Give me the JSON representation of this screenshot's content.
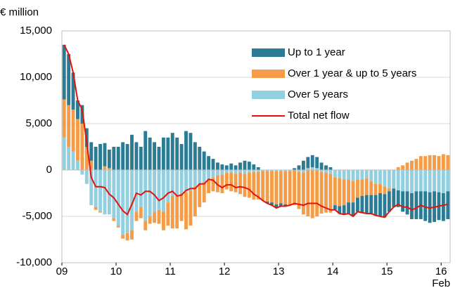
{
  "chart_data": {
    "type": "bar",
    "y_label": "€ million",
    "x_note": "Feb",
    "categories": [
      "09",
      null,
      null,
      null,
      null,
      null,
      null,
      null,
      null,
      null,
      null,
      null,
      "10",
      null,
      null,
      null,
      null,
      null,
      null,
      null,
      null,
      null,
      null,
      null,
      "11",
      null,
      null,
      null,
      null,
      null,
      null,
      null,
      null,
      null,
      null,
      null,
      "12",
      null,
      null,
      null,
      null,
      null,
      null,
      null,
      null,
      null,
      null,
      null,
      "13",
      null,
      null,
      null,
      null,
      null,
      null,
      null,
      null,
      null,
      null,
      null,
      "14",
      null,
      null,
      null,
      null,
      null,
      null,
      null,
      null,
      null,
      null,
      null,
      "15",
      null,
      null,
      null,
      null,
      null,
      null,
      null,
      null,
      null,
      null,
      null,
      "16",
      null
    ],
    "ylim": [
      -10000,
      15000
    ],
    "yticks": [
      {
        "value": -10000,
        "label": "-10,000"
      },
      {
        "value": -5000,
        "label": "-5,000"
      },
      0,
      {
        "value": 5000,
        "label": "5,000"
      },
      {
        "value": 10000,
        "label": "10,000"
      },
      {
        "value": 15000,
        "label": "15,000"
      }
    ],
    "grid": true,
    "legend": "upper right",
    "series": [
      {
        "name": "Over 5 years",
        "color": "#92cfe0",
        "values": [
          3500,
          2500,
          2000,
          1000,
          -500,
          -1500,
          -3800,
          -4000,
          -4500,
          -4800,
          -4800,
          -5200,
          -6000,
          -7000,
          -6800,
          -6500,
          -4500,
          -4000,
          -5500,
          -5000,
          -4500,
          -4300,
          -4500,
          -3500,
          -2800,
          -2800,
          -2500,
          -2400,
          -2200,
          -1800,
          -1500,
          -1300,
          -1000,
          -800,
          -600,
          -500,
          -300,
          -300,
          -400,
          -300,
          -400,
          -300,
          -200,
          -200,
          -100,
          -100,
          -100,
          -100,
          -100,
          -100,
          -100,
          0,
          -200,
          -300,
          200,
          300,
          200,
          -200,
          -300,
          -400,
          -800,
          -900,
          -1000,
          -1000,
          -1200,
          -1000,
          -1000,
          -900,
          -1200,
          -1500,
          -1500,
          -1800,
          -2000,
          -2000,
          -2200,
          -2300,
          -2300,
          -2500,
          -2300,
          -2300,
          -2300,
          -2400,
          -2300,
          -2400,
          -2500,
          -2300
        ]
      },
      {
        "name": "Over 1 year & up to 5 years",
        "color": "#f59c48",
        "values": [
          4100,
          4500,
          4500,
          4500,
          5000,
          2500,
          1000,
          -300,
          -100,
          400,
          200,
          -300,
          -200,
          -400,
          -800,
          -1000,
          -1000,
          -1200,
          -1000,
          -800,
          -1200,
          -1500,
          -2000,
          -2500,
          -3500,
          -3500,
          -3000,
          -4000,
          -3800,
          -3200,
          -2500,
          -2200,
          -1500,
          -1500,
          -1800,
          -2000,
          -1800,
          -2000,
          -2000,
          -2300,
          -2500,
          -2700,
          -3000,
          -3000,
          -3200,
          -3300,
          -3400,
          -3600,
          -3500,
          -3600,
          -3700,
          -3800,
          -4000,
          -4500,
          -5000,
          -5200,
          -5000,
          -4500,
          -4300,
          -4200,
          -3000,
          -3000,
          -2800,
          -2500,
          -2300,
          -2000,
          -1800,
          -1800,
          -1500,
          -1200,
          -1000,
          -800,
          -300,
          0,
          300,
          500,
          800,
          1000,
          1200,
          1500,
          1500,
          1600,
          1600,
          1500,
          1700,
          1600
        ]
      },
      {
        "name": "Up to 1 year",
        "color": "#2b7b94",
        "values": [
          5900,
          5500,
          4000,
          2000,
          2000,
          2000,
          2000,
          2500,
          2800,
          2500,
          2000,
          2500,
          2500,
          3000,
          2800,
          3800,
          3000,
          2500,
          4200,
          3500,
          3000,
          2500,
          3500,
          3500,
          4000,
          3500,
          2800,
          4200,
          4000,
          3000,
          2500,
          2000,
          1500,
          1200,
          800,
          600,
          500,
          700,
          500,
          800,
          1000,
          900,
          600,
          300,
          0,
          -200,
          -300,
          -400,
          -300,
          -200,
          0,
          200,
          500,
          1000,
          1200,
          1300,
          1200,
          800,
          500,
          300,
          -500,
          -800,
          -1000,
          -1200,
          -1500,
          -1500,
          -1800,
          -2000,
          -2000,
          -2200,
          -2500,
          -2500,
          -2200,
          -2000,
          -1800,
          -2200,
          -2500,
          -2800,
          -3000,
          -3000,
          -3200,
          -3300,
          -3300,
          -3000,
          -3000,
          -3000
        ]
      },
      {
        "name": "Total net flow",
        "type": "line",
        "color": "#e3120b",
        "values": [
          13500,
          12500,
          10500,
          7500,
          6500,
          3000,
          -800,
          -1800,
          -1800,
          -1900,
          -2600,
          -3000,
          -3700,
          -4400,
          -4800,
          -3700,
          -2500,
          -2700,
          -2300,
          -2300,
          -2700,
          -3300,
          -3000,
          -2500,
          -2300,
          -2800,
          -2700,
          -2200,
          -2000,
          -2000,
          -1500,
          -1500,
          -1000,
          -1100,
          -1600,
          -1900,
          -1600,
          -1600,
          -1900,
          -1800,
          -1900,
          -2100,
          -2600,
          -2900,
          -3300,
          -3600,
          -3800,
          -4100,
          -3900,
          -3900,
          -3800,
          -3600,
          -3700,
          -3800,
          -3600,
          -3600,
          -3600,
          -3900,
          -4100,
          -4300,
          -4300,
          -4700,
          -4800,
          -4700,
          -5000,
          -4500,
          -4600,
          -4700,
          -4700,
          -4900,
          -5000,
          -5100,
          -4500,
          -4000,
          -3700,
          -4000,
          -4000,
          -4300,
          -4100,
          -3800,
          -4000,
          -4100,
          -4000,
          -3900,
          -3800,
          -3700
        ]
      }
    ]
  }
}
